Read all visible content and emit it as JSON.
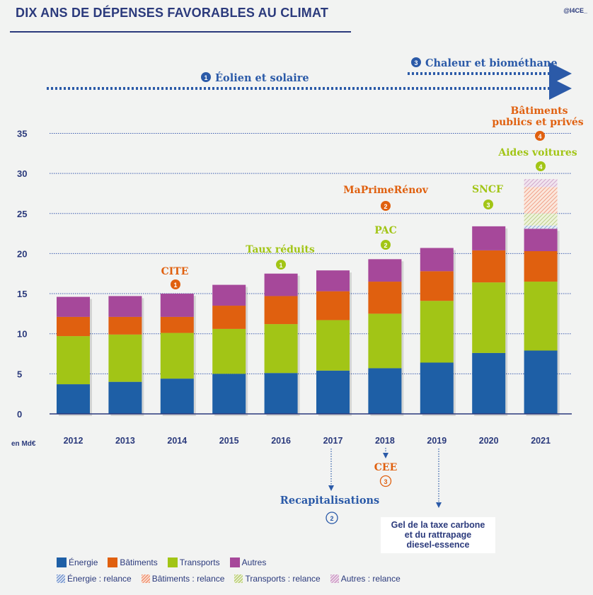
{
  "header": {
    "title": "DIX ANS DE DÉPENSES FAVORABLES AU CLIMAT",
    "logo": "@I4CE_"
  },
  "colors": {
    "energie": "#1e5fa6",
    "batiments": "#e0600f",
    "transports": "#a2c516",
    "autres": "#a6489a",
    "text": "#2b3a7c",
    "grid": "#3d5db0"
  },
  "chart_data": {
    "type": "bar",
    "stacked": true,
    "title": "DIX ANS DE DÉPENSES FAVORABLES AU CLIMAT",
    "xlabel": "",
    "ylabel": "en Md€",
    "ylim": [
      0,
      35
    ],
    "yticks": [
      0,
      5,
      10,
      15,
      20,
      25,
      30,
      35
    ],
    "grid": true,
    "categories": [
      "2012",
      "2013",
      "2014",
      "2015",
      "2016",
      "2017",
      "2018",
      "2019",
      "2020",
      "2021"
    ],
    "series": [
      {
        "name": "Énergie",
        "key": "energie",
        "values": [
          3.7,
          4.0,
          4.4,
          5.0,
          5.1,
          5.4,
          5.7,
          6.4,
          7.6,
          7.9
        ]
      },
      {
        "name": "Transports",
        "key": "transports",
        "values": [
          6.0,
          5.9,
          5.7,
          5.6,
          6.1,
          6.3,
          6.8,
          7.7,
          8.8,
          8.6
        ]
      },
      {
        "name": "Bâtiments",
        "key": "batiments",
        "values": [
          2.4,
          2.2,
          2.0,
          2.9,
          3.5,
          3.6,
          4.0,
          3.7,
          4.0,
          3.8
        ]
      },
      {
        "name": "Autres",
        "key": "autres",
        "values": [
          2.5,
          2.6,
          2.9,
          2.6,
          2.8,
          2.6,
          2.8,
          2.9,
          3.0,
          2.8
        ]
      }
    ],
    "relance_series": [
      {
        "name": "Énergie : relance",
        "key": "energie",
        "values": [
          0,
          0,
          0,
          0,
          0,
          0,
          0,
          0,
          0,
          0.4
        ]
      },
      {
        "name": "Transports : relance",
        "key": "transports",
        "values": [
          0,
          0,
          0,
          0,
          0,
          0,
          0,
          0,
          0,
          1.5
        ]
      },
      {
        "name": "Bâtiments : relance",
        "key": "batiments",
        "values": [
          0,
          0,
          0,
          0,
          0,
          0,
          0,
          0,
          0,
          3.3
        ]
      },
      {
        "name": "Autres : relance",
        "key": "autres",
        "values": [
          0,
          0,
          0,
          0,
          0,
          0,
          0,
          0,
          0,
          1.0
        ]
      }
    ],
    "legend": {
      "placement": "bottom-left",
      "entries": [
        "Énergie",
        "Bâtiments",
        "Transports",
        "Autres",
        "Énergie : relance",
        "Bâtiments : relance",
        "Transports : relance",
        "Autres : relance"
      ]
    },
    "top_annotations": [
      {
        "year": "2014",
        "label": "CITE",
        "num": "1",
        "color": "batiments"
      },
      {
        "year": "2016",
        "label": "Taux réduits",
        "num": "1",
        "color": "transports"
      },
      {
        "year": "2018",
        "label": "PAC",
        "num": "2",
        "color": "transports"
      },
      {
        "year": "2018",
        "label": "MaPrimeRénov",
        "num": "2",
        "color": "batiments"
      },
      {
        "year": "2020",
        "label": "SNCF",
        "num": "3",
        "color": "transports"
      },
      {
        "year": "2021",
        "label": "Aides voitures",
        "num": "4",
        "color": "transports"
      },
      {
        "year": "2021",
        "label": "Bâtiments publics et privés",
        "num": "4",
        "color": "batiments"
      }
    ],
    "timeline_arrows": [
      {
        "label": "Éolien et solaire",
        "num": "1",
        "from": "2012",
        "to": "2021"
      },
      {
        "label": "Chaleur et biométhane",
        "num": "3",
        "from": "2019",
        "to": "2021"
      }
    ],
    "bottom_annotations": [
      {
        "year": "2017",
        "label": "Recapitalisations",
        "num": "2"
      },
      {
        "year": "2018",
        "label": "CEE",
        "num": "3"
      },
      {
        "year": "2019",
        "label": "Gel de la taxe carbone et du rattrapage diesel-essence"
      }
    ]
  },
  "axis": {
    "unit": "en Md€"
  },
  "annotations": {
    "eolien": "Éolien et solaire",
    "eolien_num": "1",
    "chaleur": "Chaleur et biométhane",
    "chaleur_num": "3",
    "cite": "CITE",
    "cite_num": "1",
    "taux": "Taux réduits",
    "taux_num": "1",
    "pac": "PAC",
    "pac_num": "2",
    "maprime": "MaPrimeRénov",
    "maprime_num": "2",
    "sncf": "SNCF",
    "sncf_num": "3",
    "aides": "Aides voitures",
    "aides_num": "4",
    "bat1": "Bâtiments",
    "bat2": "publics et privés",
    "bat_num": "4",
    "recap": "Recapitalisations",
    "recap_num": "2",
    "cee": "CEE",
    "cee_num": "3",
    "gel1": "Gel de la taxe carbone",
    "gel2": "et du rattrapage",
    "gel3": "diesel-essence"
  },
  "legend": {
    "row1": [
      {
        "label": "Énergie",
        "key": "energie"
      },
      {
        "label": "Bâtiments",
        "key": "batiments"
      },
      {
        "label": "Transports",
        "key": "transports"
      },
      {
        "label": "Autres",
        "key": "autres"
      }
    ],
    "row2": [
      {
        "label": "Énergie : relance",
        "key": "energie"
      },
      {
        "label": "Bâtiments : relance",
        "key": "batiments"
      },
      {
        "label": "Transports : relance",
        "key": "transports"
      },
      {
        "label": "Autres : relance",
        "key": "autres"
      }
    ]
  }
}
